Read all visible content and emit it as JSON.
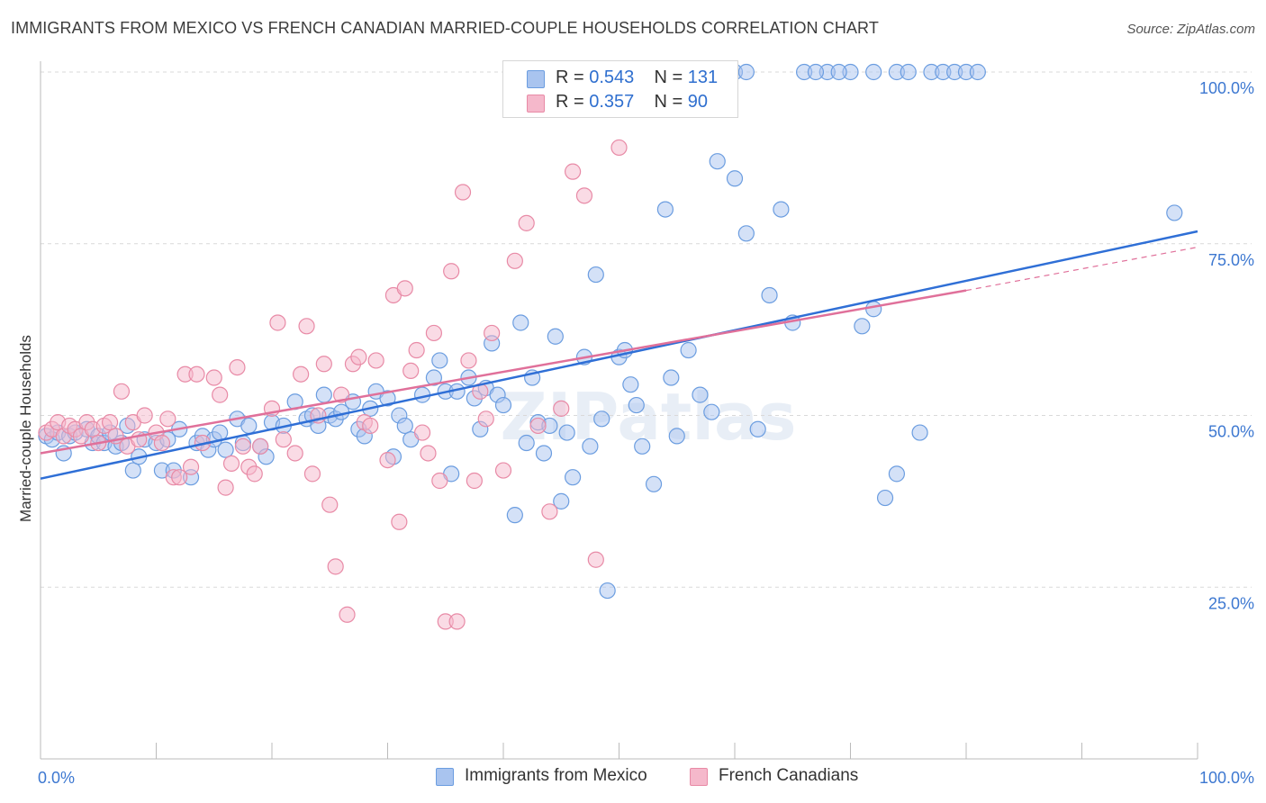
{
  "title": "IMMIGRANTS FROM MEXICO VS FRENCH CANADIAN MARRIED-COUPLE HOUSEHOLDS CORRELATION CHART",
  "source": "Source: ZipAtlas.com",
  "watermark": "ZIPatlas",
  "legend_top": [
    {
      "r_label": "R =",
      "r_value": "0.543",
      "n_label": "N =",
      "n_value": "131",
      "color": "#a9c4ef"
    },
    {
      "r_label": "R =",
      "r_value": "0.357",
      "n_label": "N =",
      "n_value": "90",
      "color": "#f5b8cb"
    }
  ],
  "legend_bottom": [
    {
      "label": "Immigrants from Mexico",
      "color": "#a9c4ef"
    },
    {
      "label": "French Canadians",
      "color": "#f5b8cb"
    }
  ],
  "chart_data": {
    "type": "scatter",
    "xlabel": "",
    "ylabel": "Married-couple Households",
    "xlim": [
      0,
      100
    ],
    "ylim": [
      0,
      100
    ],
    "x_tick_labels": [
      {
        "value": 0,
        "label": "0.0%"
      },
      {
        "value": 100,
        "label": "100.0%"
      }
    ],
    "y_tick_labels": [
      {
        "value": 25,
        "label": "25.0%"
      },
      {
        "value": 50,
        "label": "50.0%"
      },
      {
        "value": 75,
        "label": "75.0%"
      },
      {
        "value": 100,
        "label": "100.0%"
      }
    ],
    "grid": "horizontal dashed",
    "series": [
      {
        "name": "Immigrants from Mexico",
        "color": "#6b9de0",
        "fill": "#a9c4ef",
        "trend": {
          "x": [
            0,
            100
          ],
          "y": [
            40.8,
            76.8
          ],
          "color": "#2f6fd6"
        },
        "points": [
          [
            0.5,
            47
          ],
          [
            1,
            46.5
          ],
          [
            1.5,
            47.5
          ],
          [
            2,
            44.5
          ],
          [
            2.5,
            47
          ],
          [
            3,
            47.5
          ],
          [
            4,
            48
          ],
          [
            4.5,
            46
          ],
          [
            5,
            47
          ],
          [
            5.5,
            46
          ],
          [
            6,
            47.5
          ],
          [
            6.5,
            45.5
          ],
          [
            7,
            46
          ],
          [
            7.5,
            48.5
          ],
          [
            8,
            42
          ],
          [
            8.5,
            44
          ],
          [
            9,
            46.5
          ],
          [
            10,
            46
          ],
          [
            10.5,
            42
          ],
          [
            11,
            46.5
          ],
          [
            11.5,
            42
          ],
          [
            12,
            48
          ],
          [
            13,
            41
          ],
          [
            13.5,
            46
          ],
          [
            14,
            47
          ],
          [
            14.5,
            45
          ],
          [
            15,
            46.5
          ],
          [
            15.5,
            47.5
          ],
          [
            16,
            45
          ],
          [
            17,
            49.5
          ],
          [
            17.5,
            46
          ],
          [
            18,
            48.5
          ],
          [
            19,
            45.5
          ],
          [
            19.5,
            44
          ],
          [
            20,
            49
          ],
          [
            21,
            48.5
          ],
          [
            22,
            52
          ],
          [
            23,
            49.5
          ],
          [
            23.5,
            50
          ],
          [
            24,
            48.5
          ],
          [
            24.5,
            53
          ],
          [
            25,
            50
          ],
          [
            25.5,
            49.5
          ],
          [
            26,
            50.5
          ],
          [
            27,
            52
          ],
          [
            27.5,
            48
          ],
          [
            28,
            47
          ],
          [
            28.5,
            51
          ],
          [
            29,
            53.5
          ],
          [
            30,
            52.5
          ],
          [
            30.5,
            44
          ],
          [
            31,
            50
          ],
          [
            31.5,
            48.5
          ],
          [
            32,
            46.5
          ],
          [
            33,
            53
          ],
          [
            34,
            55.5
          ],
          [
            34.5,
            58
          ],
          [
            35,
            53.5
          ],
          [
            35.5,
            41.5
          ],
          [
            36,
            53.5
          ],
          [
            37,
            55.5
          ],
          [
            37.5,
            52.5
          ],
          [
            38,
            48
          ],
          [
            38.5,
            54
          ],
          [
            39,
            60.5
          ],
          [
            39.5,
            53
          ],
          [
            40,
            51.5
          ],
          [
            41,
            35.5
          ],
          [
            41.5,
            63.5
          ],
          [
            42,
            46
          ],
          [
            42.5,
            55.5
          ],
          [
            43,
            49
          ],
          [
            43.5,
            44.5
          ],
          [
            44,
            48.5
          ],
          [
            44.5,
            61.5
          ],
          [
            45,
            37.5
          ],
          [
            45.5,
            47.5
          ],
          [
            46,
            41
          ],
          [
            47,
            58.5
          ],
          [
            47.5,
            45.5
          ],
          [
            48,
            70.5
          ],
          [
            48.5,
            49.5
          ],
          [
            49,
            24.5
          ],
          [
            50,
            58.5
          ],
          [
            50.5,
            59.5
          ],
          [
            51,
            54.5
          ],
          [
            51.5,
            51.5
          ],
          [
            52,
            45.5
          ],
          [
            53,
            40
          ],
          [
            54,
            80
          ],
          [
            54.5,
            55.5
          ],
          [
            55,
            47
          ],
          [
            56,
            59.5
          ],
          [
            57,
            53
          ],
          [
            58,
            50.5
          ],
          [
            58.5,
            87
          ],
          [
            60,
            84.5
          ],
          [
            61,
            76.5
          ],
          [
            62,
            48
          ],
          [
            63,
            67.5
          ],
          [
            64,
            80
          ],
          [
            65,
            63.5
          ],
          [
            68,
            100
          ],
          [
            70,
            100
          ],
          [
            72,
            100
          ],
          [
            71,
            63
          ],
          [
            72,
            65.5
          ],
          [
            73,
            38
          ],
          [
            74,
            41.5
          ],
          [
            76,
            47.5
          ],
          [
            77,
            100
          ],
          [
            98,
            79.5
          ],
          [
            50,
            100
          ],
          [
            51,
            100
          ],
          [
            52,
            100
          ],
          [
            53,
            100
          ],
          [
            55.5,
            100
          ],
          [
            57,
            100
          ],
          [
            58,
            100
          ],
          [
            66,
            100
          ],
          [
            67,
            100
          ],
          [
            69,
            100
          ],
          [
            59,
            100
          ],
          [
            60,
            100
          ],
          [
            61,
            100
          ],
          [
            74,
            100
          ],
          [
            75,
            100
          ],
          [
            78,
            100
          ],
          [
            79,
            100
          ],
          [
            80,
            100
          ],
          [
            81,
            100
          ]
        ]
      },
      {
        "name": "French Canadians",
        "color": "#e88aa6",
        "fill": "#f5b8cb",
        "trend": {
          "x": [
            0,
            80
          ],
          "y": [
            44.5,
            68.2
          ],
          "color": "#e0709a"
        },
        "trend_extension": {
          "x": [
            80,
            100
          ],
          "y": [
            68.2,
            74.5
          ]
        },
        "points": [
          [
            0.5,
            47.5
          ],
          [
            1,
            48
          ],
          [
            1.5,
            49
          ],
          [
            2,
            47
          ],
          [
            2.5,
            48.5
          ],
          [
            3,
            48
          ],
          [
            3.5,
            47
          ],
          [
            4,
            49
          ],
          [
            4.5,
            48
          ],
          [
            5,
            46
          ],
          [
            5.5,
            48.5
          ],
          [
            6,
            49
          ],
          [
            6.5,
            47
          ],
          [
            7,
            53.5
          ],
          [
            7.5,
            45.5
          ],
          [
            8,
            49
          ],
          [
            8.5,
            46.5
          ],
          [
            9,
            50
          ],
          [
            10,
            47.5
          ],
          [
            10.5,
            46
          ],
          [
            11,
            49.5
          ],
          [
            11.5,
            41
          ],
          [
            12,
            41
          ],
          [
            12.5,
            56
          ],
          [
            13,
            42.5
          ],
          [
            13.5,
            56
          ],
          [
            14,
            46
          ],
          [
            15,
            55.5
          ],
          [
            15.5,
            53
          ],
          [
            16,
            39.5
          ],
          [
            16.5,
            43
          ],
          [
            17,
            57
          ],
          [
            17.5,
            45.5
          ],
          [
            18,
            42.5
          ],
          [
            18.5,
            41.5
          ],
          [
            19,
            45.5
          ],
          [
            20,
            51
          ],
          [
            20.5,
            63.5
          ],
          [
            21,
            46.5
          ],
          [
            22,
            44.5
          ],
          [
            22.5,
            56
          ],
          [
            23,
            63
          ],
          [
            23.5,
            41.5
          ],
          [
            24,
            50
          ],
          [
            24.5,
            57.5
          ],
          [
            25,
            37
          ],
          [
            25.5,
            28
          ],
          [
            26,
            53
          ],
          [
            26.5,
            21
          ],
          [
            27,
            57.5
          ],
          [
            27.5,
            58.5
          ],
          [
            28,
            49
          ],
          [
            28.5,
            48.5
          ],
          [
            29,
            58
          ],
          [
            30,
            43.5
          ],
          [
            30.5,
            67.5
          ],
          [
            31,
            34.5
          ],
          [
            31.5,
            68.5
          ],
          [
            32,
            56.5
          ],
          [
            32.5,
            59.5
          ],
          [
            33,
            47.5
          ],
          [
            33.5,
            44.5
          ],
          [
            34,
            62
          ],
          [
            34.5,
            40.5
          ],
          [
            35,
            20
          ],
          [
            35.5,
            71
          ],
          [
            36,
            20
          ],
          [
            36.5,
            82.5
          ],
          [
            37,
            58
          ],
          [
            37.5,
            40.5
          ],
          [
            38,
            53.5
          ],
          [
            38.5,
            49.5
          ],
          [
            39,
            62
          ],
          [
            40,
            42
          ],
          [
            41,
            72.5
          ],
          [
            42,
            78
          ],
          [
            43,
            48.5
          ],
          [
            44,
            36
          ],
          [
            45,
            51
          ],
          [
            46,
            85.5
          ],
          [
            47,
            82
          ],
          [
            48,
            29
          ],
          [
            50,
            89
          ],
          [
            52,
            100
          ],
          [
            53,
            100
          ],
          [
            54,
            100
          ],
          [
            55,
            100
          ],
          [
            56,
            100
          ],
          [
            57,
            100
          ],
          [
            58,
            100
          ]
        ]
      }
    ]
  }
}
